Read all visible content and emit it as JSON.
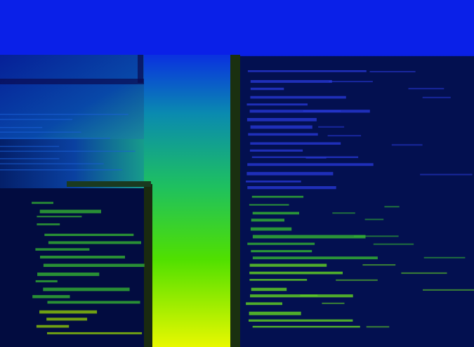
{
  "image": {
    "kind": "depth-colored point cloud rendering",
    "colormap": {
      "near": "#f0ff00",
      "mid": "#40e000",
      "far": "#0000e0",
      "deep": "#000840"
    },
    "regions": [
      {
        "name": "top-band",
        "depth": 0.0
      },
      {
        "name": "corridor-vertical",
        "depth": 0.55
      },
      {
        "name": "corridor-horizontal-left",
        "depth": 0.35
      },
      {
        "name": "rack-left",
        "depth": 0.45
      },
      {
        "name": "rack-right",
        "depth": 0.4
      }
    ]
  }
}
